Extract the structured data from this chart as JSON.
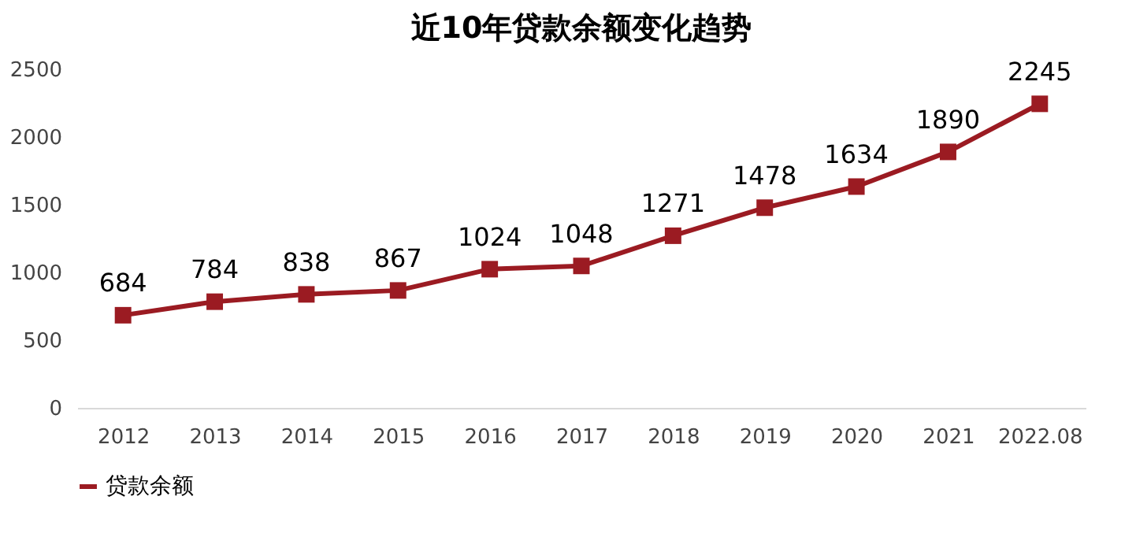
{
  "chart_data": {
    "type": "line",
    "title": "近10年贷款余额变化趋势",
    "categories": [
      "2012",
      "2013",
      "2014",
      "2015",
      "2016",
      "2017",
      "2018",
      "2019",
      "2020",
      "2021",
      "2022.08"
    ],
    "series": [
      {
        "name": "贷款余额",
        "color": "#9b1b22",
        "values": [
          684,
          784,
          838,
          867,
          1024,
          1048,
          1271,
          1478,
          1634,
          1890,
          2245
        ]
      }
    ],
    "ylim": [
      0,
      2500
    ],
    "yticks": [
      0,
      500,
      1000,
      1500,
      2000,
      2500
    ],
    "marker": "square",
    "line_style": "solid",
    "data_labels": true,
    "legend": "bottom",
    "grid": false
  }
}
